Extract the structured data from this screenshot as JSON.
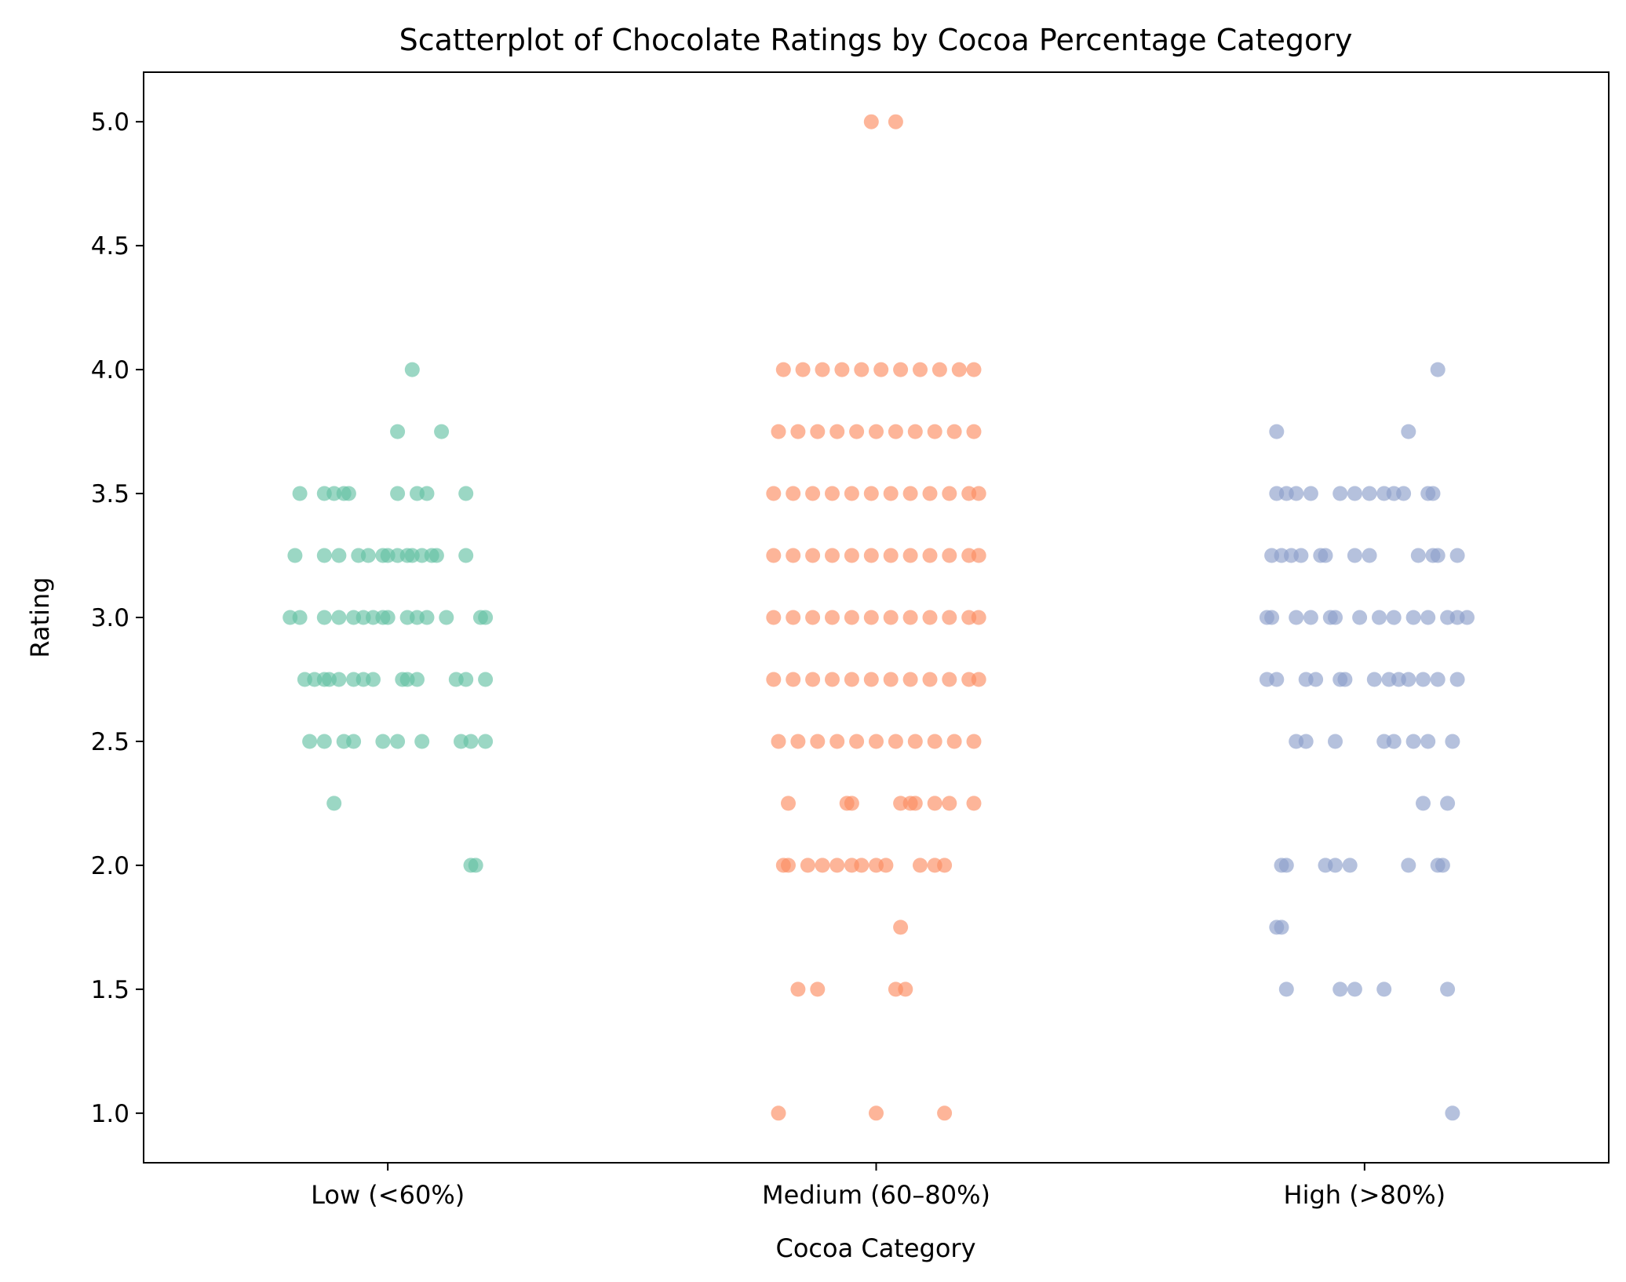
{
  "chart_data": {
    "type": "scatter",
    "title": "Scatterplot of Chocolate Ratings by Cocoa Percentage Category",
    "xlabel": "Cocoa Category",
    "ylabel": "Rating",
    "categories": [
      "Low (<60%)",
      "Medium (60–80%)",
      "High (>80%)"
    ],
    "ylim": [
      0.8,
      5.2
    ],
    "yticks": [
      "1.0",
      "1.5",
      "2.0",
      "2.5",
      "3.0",
      "3.5",
      "4.0",
      "4.5",
      "5.0"
    ],
    "grid": false,
    "series": [
      {
        "category": "Low (<60%)",
        "color": "#66c2a5",
        "points": [
          [
            0.05,
            4.0
          ],
          [
            0.02,
            3.75
          ],
          [
            0.11,
            3.75
          ],
          [
            -0.18,
            3.5
          ],
          [
            -0.13,
            3.5
          ],
          [
            -0.11,
            3.5
          ],
          [
            -0.09,
            3.5
          ],
          [
            -0.08,
            3.5
          ],
          [
            0.02,
            3.5
          ],
          [
            0.06,
            3.5
          ],
          [
            0.08,
            3.5
          ],
          [
            0.16,
            3.5
          ],
          [
            -0.19,
            3.25
          ],
          [
            -0.13,
            3.25
          ],
          [
            -0.1,
            3.25
          ],
          [
            -0.06,
            3.25
          ],
          [
            -0.04,
            3.25
          ],
          [
            -0.01,
            3.25
          ],
          [
            0.0,
            3.25
          ],
          [
            0.02,
            3.25
          ],
          [
            0.04,
            3.25
          ],
          [
            0.05,
            3.25
          ],
          [
            0.07,
            3.25
          ],
          [
            0.09,
            3.25
          ],
          [
            0.1,
            3.25
          ],
          [
            0.16,
            3.25
          ],
          [
            -0.2,
            3.0
          ],
          [
            -0.18,
            3.0
          ],
          [
            -0.13,
            3.0
          ],
          [
            -0.1,
            3.0
          ],
          [
            -0.07,
            3.0
          ],
          [
            -0.05,
            3.0
          ],
          [
            -0.03,
            3.0
          ],
          [
            -0.01,
            3.0
          ],
          [
            0.0,
            3.0
          ],
          [
            0.04,
            3.0
          ],
          [
            0.06,
            3.0
          ],
          [
            0.08,
            3.0
          ],
          [
            0.12,
            3.0
          ],
          [
            0.19,
            3.0
          ],
          [
            0.2,
            3.0
          ],
          [
            -0.17,
            2.75
          ],
          [
            -0.15,
            2.75
          ],
          [
            -0.13,
            2.75
          ],
          [
            -0.12,
            2.75
          ],
          [
            -0.1,
            2.75
          ],
          [
            -0.07,
            2.75
          ],
          [
            -0.05,
            2.75
          ],
          [
            -0.03,
            2.75
          ],
          [
            0.03,
            2.75
          ],
          [
            0.04,
            2.75
          ],
          [
            0.06,
            2.75
          ],
          [
            0.14,
            2.75
          ],
          [
            0.16,
            2.75
          ],
          [
            0.2,
            2.75
          ],
          [
            -0.16,
            2.5
          ],
          [
            -0.13,
            2.5
          ],
          [
            -0.09,
            2.5
          ],
          [
            -0.07,
            2.5
          ],
          [
            -0.01,
            2.5
          ],
          [
            0.02,
            2.5
          ],
          [
            0.07,
            2.5
          ],
          [
            0.15,
            2.5
          ],
          [
            0.17,
            2.5
          ],
          [
            0.2,
            2.5
          ],
          [
            -0.11,
            2.25
          ],
          [
            0.17,
            2.0
          ],
          [
            0.18,
            2.0
          ]
        ]
      },
      {
        "category": "Medium (60–80%)",
        "color": "#fc8d62",
        "points": [
          [
            -0.01,
            5.0
          ],
          [
            0.04,
            5.0
          ],
          [
            -0.19,
            4.0
          ],
          [
            -0.15,
            4.0
          ],
          [
            -0.11,
            4.0
          ],
          [
            -0.07,
            4.0
          ],
          [
            -0.03,
            4.0
          ],
          [
            0.01,
            4.0
          ],
          [
            0.05,
            4.0
          ],
          [
            0.09,
            4.0
          ],
          [
            0.13,
            4.0
          ],
          [
            0.17,
            4.0
          ],
          [
            0.2,
            4.0
          ],
          [
            -0.2,
            3.75
          ],
          [
            -0.16,
            3.75
          ],
          [
            -0.12,
            3.75
          ],
          [
            -0.08,
            3.75
          ],
          [
            -0.04,
            3.75
          ],
          [
            0.0,
            3.75
          ],
          [
            0.04,
            3.75
          ],
          [
            0.08,
            3.75
          ],
          [
            0.12,
            3.75
          ],
          [
            0.16,
            3.75
          ],
          [
            0.2,
            3.75
          ],
          [
            -0.21,
            3.5
          ],
          [
            -0.17,
            3.5
          ],
          [
            -0.13,
            3.5
          ],
          [
            -0.09,
            3.5
          ],
          [
            -0.05,
            3.5
          ],
          [
            -0.01,
            3.5
          ],
          [
            0.03,
            3.5
          ],
          [
            0.07,
            3.5
          ],
          [
            0.11,
            3.5
          ],
          [
            0.15,
            3.5
          ],
          [
            0.19,
            3.5
          ],
          [
            0.21,
            3.5
          ],
          [
            -0.21,
            3.25
          ],
          [
            -0.17,
            3.25
          ],
          [
            -0.13,
            3.25
          ],
          [
            -0.09,
            3.25
          ],
          [
            -0.05,
            3.25
          ],
          [
            -0.01,
            3.25
          ],
          [
            0.03,
            3.25
          ],
          [
            0.07,
            3.25
          ],
          [
            0.11,
            3.25
          ],
          [
            0.15,
            3.25
          ],
          [
            0.19,
            3.25
          ],
          [
            0.21,
            3.25
          ],
          [
            -0.21,
            3.0
          ],
          [
            -0.17,
            3.0
          ],
          [
            -0.13,
            3.0
          ],
          [
            -0.09,
            3.0
          ],
          [
            -0.05,
            3.0
          ],
          [
            -0.01,
            3.0
          ],
          [
            0.03,
            3.0
          ],
          [
            0.07,
            3.0
          ],
          [
            0.11,
            3.0
          ],
          [
            0.15,
            3.0
          ],
          [
            0.19,
            3.0
          ],
          [
            0.21,
            3.0
          ],
          [
            -0.21,
            2.75
          ],
          [
            -0.17,
            2.75
          ],
          [
            -0.13,
            2.75
          ],
          [
            -0.09,
            2.75
          ],
          [
            -0.05,
            2.75
          ],
          [
            -0.01,
            2.75
          ],
          [
            0.03,
            2.75
          ],
          [
            0.07,
            2.75
          ],
          [
            0.11,
            2.75
          ],
          [
            0.15,
            2.75
          ],
          [
            0.19,
            2.75
          ],
          [
            0.21,
            2.75
          ],
          [
            -0.2,
            2.5
          ],
          [
            -0.16,
            2.5
          ],
          [
            -0.12,
            2.5
          ],
          [
            -0.08,
            2.5
          ],
          [
            -0.04,
            2.5
          ],
          [
            0.0,
            2.5
          ],
          [
            0.04,
            2.5
          ],
          [
            0.08,
            2.5
          ],
          [
            0.12,
            2.5
          ],
          [
            0.16,
            2.5
          ],
          [
            0.2,
            2.5
          ],
          [
            -0.18,
            2.25
          ],
          [
            -0.06,
            2.25
          ],
          [
            -0.05,
            2.25
          ],
          [
            0.05,
            2.25
          ],
          [
            0.07,
            2.25
          ],
          [
            0.08,
            2.25
          ],
          [
            0.12,
            2.25
          ],
          [
            0.15,
            2.25
          ],
          [
            0.2,
            2.25
          ],
          [
            -0.19,
            2.0
          ],
          [
            -0.18,
            2.0
          ],
          [
            -0.14,
            2.0
          ],
          [
            -0.11,
            2.0
          ],
          [
            -0.08,
            2.0
          ],
          [
            -0.05,
            2.0
          ],
          [
            -0.03,
            2.0
          ],
          [
            0.0,
            2.0
          ],
          [
            0.02,
            2.0
          ],
          [
            0.09,
            2.0
          ],
          [
            0.12,
            2.0
          ],
          [
            0.14,
            2.0
          ],
          [
            0.05,
            1.75
          ],
          [
            -0.16,
            1.5
          ],
          [
            -0.12,
            1.5
          ],
          [
            0.04,
            1.5
          ],
          [
            0.06,
            1.5
          ],
          [
            -0.2,
            1.0
          ],
          [
            0.0,
            1.0
          ],
          [
            0.14,
            1.0
          ]
        ]
      },
      {
        "category": "High (>80%)",
        "color": "#8da0cb",
        "points": [
          [
            0.15,
            4.0
          ],
          [
            -0.18,
            3.75
          ],
          [
            0.09,
            3.75
          ],
          [
            -0.18,
            3.5
          ],
          [
            -0.16,
            3.5
          ],
          [
            -0.14,
            3.5
          ],
          [
            -0.11,
            3.5
          ],
          [
            -0.05,
            3.5
          ],
          [
            -0.02,
            3.5
          ],
          [
            0.01,
            3.5
          ],
          [
            0.04,
            3.5
          ],
          [
            0.06,
            3.5
          ],
          [
            0.08,
            3.5
          ],
          [
            0.13,
            3.5
          ],
          [
            0.14,
            3.5
          ],
          [
            -0.19,
            3.25
          ],
          [
            -0.17,
            3.25
          ],
          [
            -0.15,
            3.25
          ],
          [
            -0.13,
            3.25
          ],
          [
            -0.09,
            3.25
          ],
          [
            -0.08,
            3.25
          ],
          [
            -0.02,
            3.25
          ],
          [
            0.01,
            3.25
          ],
          [
            0.11,
            3.25
          ],
          [
            0.14,
            3.25
          ],
          [
            0.15,
            3.25
          ],
          [
            0.19,
            3.25
          ],
          [
            -0.2,
            3.0
          ],
          [
            -0.19,
            3.0
          ],
          [
            -0.14,
            3.0
          ],
          [
            -0.11,
            3.0
          ],
          [
            -0.07,
            3.0
          ],
          [
            -0.06,
            3.0
          ],
          [
            -0.01,
            3.0
          ],
          [
            0.03,
            3.0
          ],
          [
            0.06,
            3.0
          ],
          [
            0.1,
            3.0
          ],
          [
            0.13,
            3.0
          ],
          [
            0.17,
            3.0
          ],
          [
            0.19,
            3.0
          ],
          [
            0.21,
            3.0
          ],
          [
            -0.2,
            2.75
          ],
          [
            -0.18,
            2.75
          ],
          [
            -0.12,
            2.75
          ],
          [
            -0.1,
            2.75
          ],
          [
            -0.05,
            2.75
          ],
          [
            -0.04,
            2.75
          ],
          [
            0.02,
            2.75
          ],
          [
            0.05,
            2.75
          ],
          [
            0.07,
            2.75
          ],
          [
            0.09,
            2.75
          ],
          [
            0.12,
            2.75
          ],
          [
            0.15,
            2.75
          ],
          [
            0.19,
            2.75
          ],
          [
            -0.14,
            2.5
          ],
          [
            -0.12,
            2.5
          ],
          [
            -0.06,
            2.5
          ],
          [
            0.04,
            2.5
          ],
          [
            0.06,
            2.5
          ],
          [
            0.1,
            2.5
          ],
          [
            0.13,
            2.5
          ],
          [
            0.18,
            2.5
          ],
          [
            0.12,
            2.25
          ],
          [
            0.17,
            2.25
          ],
          [
            -0.17,
            2.0
          ],
          [
            -0.16,
            2.0
          ],
          [
            -0.08,
            2.0
          ],
          [
            -0.06,
            2.0
          ],
          [
            -0.03,
            2.0
          ],
          [
            0.09,
            2.0
          ],
          [
            0.15,
            2.0
          ],
          [
            0.16,
            2.0
          ],
          [
            -0.18,
            1.75
          ],
          [
            -0.17,
            1.75
          ],
          [
            -0.16,
            1.5
          ],
          [
            -0.05,
            1.5
          ],
          [
            -0.02,
            1.5
          ],
          [
            0.04,
            1.5
          ],
          [
            0.17,
            1.5
          ],
          [
            0.18,
            1.0
          ]
        ]
      }
    ]
  }
}
